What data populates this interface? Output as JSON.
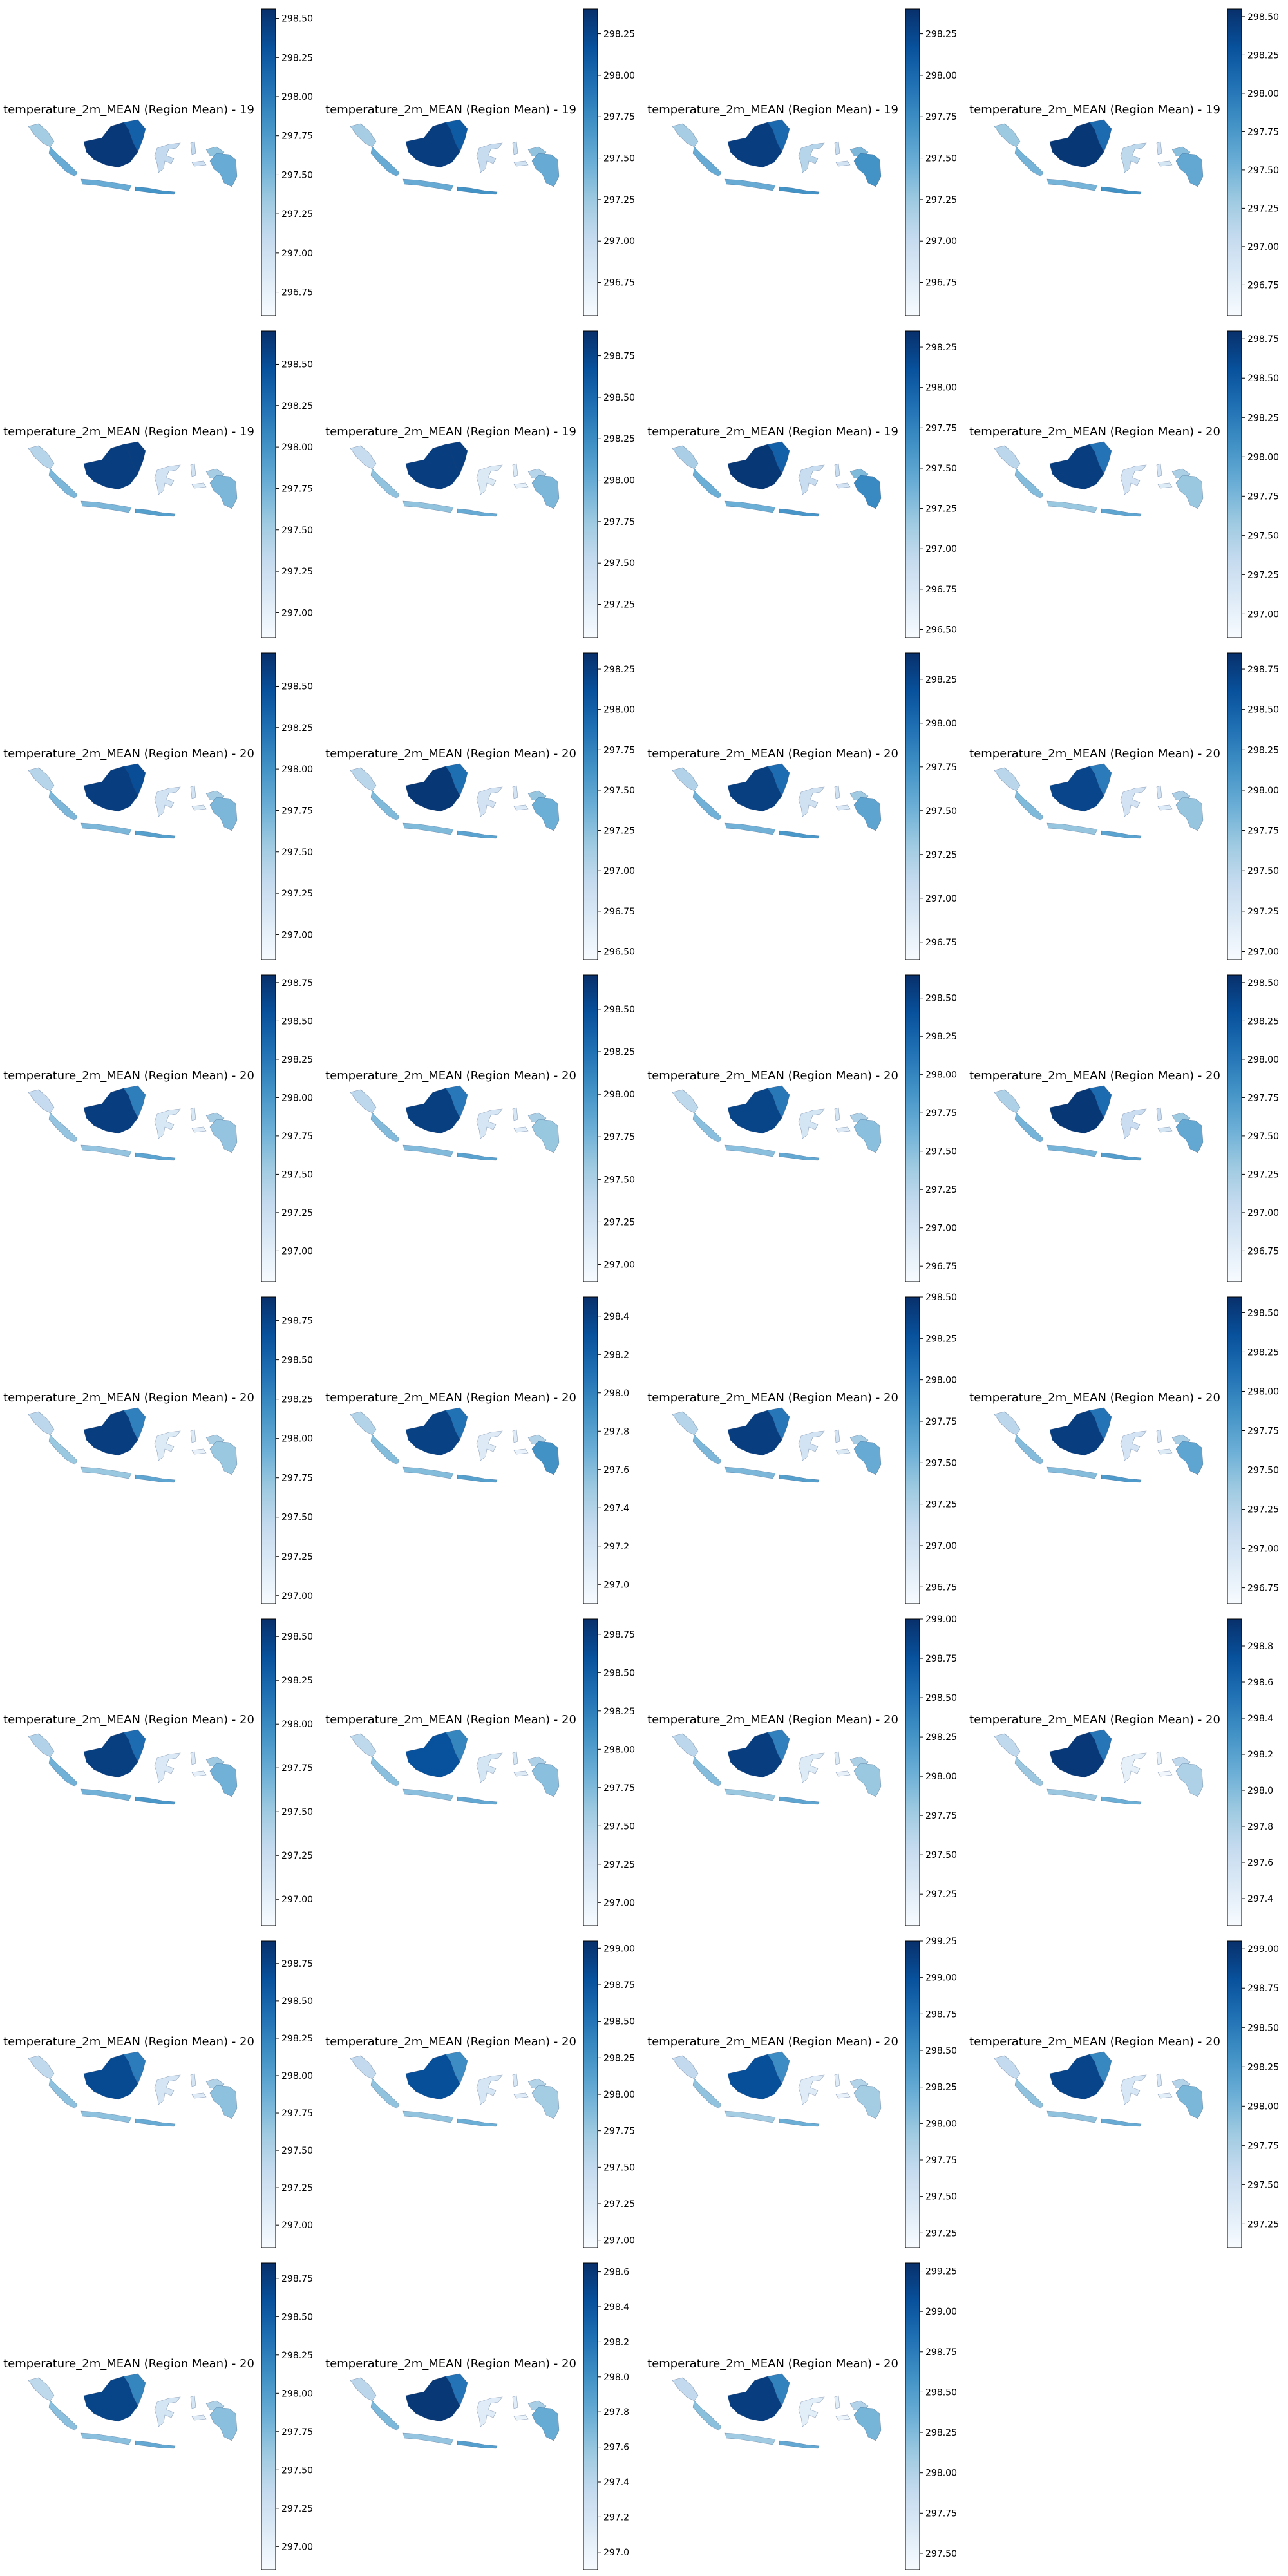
{
  "colormap": {
    "name": "Blues",
    "stops": [
      "#f7fbff",
      "#deebf7",
      "#c6dbef",
      "#9ecae1",
      "#6baed6",
      "#4292c6",
      "#2171b5",
      "#08519c",
      "#08306b"
    ]
  },
  "chart_data": [
    {
      "type": "choropleth",
      "title": "temperature_2m_MEAN (Region Mean) - 19",
      "clim": [
        296.6,
        298.56
      ],
      "ticks": [
        "296.75",
        "297.00",
        "297.25",
        "297.50",
        "297.75",
        "298.00",
        "298.25",
        "298.50"
      ],
      "region_values": [
        297.3,
        298.5,
        297.6,
        298.2,
        297.6,
        297.8,
        297.1,
        297.1,
        297.0,
        297.4,
        297.6
      ]
    },
    {
      "type": "choropleth",
      "title": "temperature_2m_MEAN (Region Mean) - 19",
      "clim": [
        296.55,
        298.4
      ],
      "ticks": [
        "296.75",
        "297.00",
        "297.25",
        "297.50",
        "297.75",
        "298.00",
        "298.25"
      ],
      "region_values": [
        297.2,
        298.3,
        297.5,
        298.1,
        297.5,
        297.7,
        297.0,
        297.0,
        296.9,
        297.3,
        297.5
      ]
    },
    {
      "type": "choropleth",
      "title": "temperature_2m_MEAN (Region Mean) - 19",
      "clim": [
        296.55,
        298.4
      ],
      "ticks": [
        "296.75",
        "297.00",
        "297.25",
        "297.50",
        "297.75",
        "298.00",
        "298.25"
      ],
      "region_values": [
        297.2,
        298.3,
        297.5,
        298.0,
        297.5,
        297.7,
        297.1,
        297.0,
        296.9,
        297.4,
        297.7
      ]
    },
    {
      "type": "choropleth",
      "title": "temperature_2m_MEAN (Region Mean) - 19",
      "clim": [
        296.55,
        298.55
      ],
      "ticks": [
        "296.75",
        "297.00",
        "297.25",
        "297.50",
        "297.75",
        "298.00",
        "298.25",
        "298.50"
      ],
      "region_values": [
        297.3,
        298.5,
        297.5,
        298.1,
        297.5,
        297.8,
        297.1,
        297.0,
        296.9,
        297.4,
        297.6
      ]
    },
    {
      "type": "choropleth",
      "title": "temperature_2m_MEAN (Region Mean) - 19",
      "clim": [
        296.85,
        298.7
      ],
      "ticks": [
        "297.00",
        "297.25",
        "297.50",
        "297.75",
        "298.00",
        "298.25",
        "298.50"
      ],
      "region_values": [
        297.4,
        298.6,
        297.7,
        298.6,
        297.7,
        297.9,
        297.2,
        297.2,
        297.1,
        297.5,
        297.7
      ]
    },
    {
      "type": "choropleth",
      "title": "temperature_2m_MEAN (Region Mean) - 19",
      "clim": [
        297.05,
        298.9
      ],
      "ticks": [
        "297.25",
        "297.50",
        "297.75",
        "298.00",
        "298.25",
        "298.50",
        "298.75"
      ],
      "region_values": [
        297.5,
        298.8,
        297.8,
        298.8,
        297.8,
        298.0,
        297.3,
        297.3,
        297.2,
        297.6,
        297.9
      ]
    },
    {
      "type": "choropleth",
      "title": "temperature_2m_MEAN (Region Mean) - 19",
      "clim": [
        296.45,
        298.35
      ],
      "ticks": [
        "296.50",
        "296.75",
        "297.00",
        "297.25",
        "297.50",
        "297.75",
        "298.00",
        "298.25"
      ],
      "region_values": [
        297.1,
        298.3,
        297.4,
        298.0,
        297.4,
        297.6,
        296.9,
        296.9,
        296.8,
        297.3,
        297.7
      ]
    },
    {
      "type": "choropleth",
      "title": "temperature_2m_MEAN (Region Mean) - 20",
      "clim": [
        296.85,
        298.8
      ],
      "ticks": [
        "297.00",
        "297.25",
        "297.50",
        "297.75",
        "298.00",
        "298.25",
        "298.50",
        "298.75"
      ],
      "region_values": [
        297.4,
        298.7,
        297.7,
        298.3,
        297.6,
        297.9,
        297.2,
        297.2,
        297.1,
        297.5,
        297.6
      ]
    },
    {
      "type": "choropleth",
      "title": "temperature_2m_MEAN (Region Mean) - 20",
      "clim": [
        296.85,
        298.7
      ],
      "ticks": [
        "297.00",
        "297.25",
        "297.50",
        "297.75",
        "298.00",
        "298.25",
        "298.50"
      ],
      "region_values": [
        297.4,
        298.6,
        297.7,
        298.5,
        297.7,
        297.9,
        297.2,
        297.2,
        297.1,
        297.5,
        297.7
      ]
    },
    {
      "type": "choropleth",
      "title": "temperature_2m_MEAN (Region Mean) - 20",
      "clim": [
        296.45,
        298.35
      ],
      "ticks": [
        "296.50",
        "296.75",
        "297.00",
        "297.25",
        "297.50",
        "297.75",
        "298.00",
        "298.25"
      ],
      "region_values": [
        297.0,
        298.3,
        297.3,
        297.9,
        297.3,
        297.5,
        296.8,
        296.8,
        296.7,
        297.2,
        297.4
      ]
    },
    {
      "type": "choropleth",
      "title": "temperature_2m_MEAN (Region Mean) - 20",
      "clim": [
        296.65,
        298.4
      ],
      "ticks": [
        "296.75",
        "297.00",
        "297.25",
        "297.50",
        "297.75",
        "298.00",
        "298.25"
      ],
      "region_values": [
        297.2,
        298.3,
        297.5,
        298.0,
        297.5,
        297.7,
        297.0,
        297.0,
        296.9,
        297.3,
        297.6
      ]
    },
    {
      "type": "choropleth",
      "title": "temperature_2m_MEAN (Region Mean) - 20",
      "clim": [
        296.95,
        298.85
      ],
      "ticks": [
        "297.00",
        "297.25",
        "297.50",
        "297.75",
        "298.00",
        "298.25",
        "298.50",
        "298.75"
      ],
      "region_values": [
        297.5,
        298.7,
        297.8,
        298.3,
        297.7,
        298.0,
        297.3,
        297.3,
        297.2,
        297.6,
        297.7
      ]
    },
    {
      "type": "choropleth",
      "title": "temperature_2m_MEAN (Region Mean) - 20",
      "clim": [
        296.8,
        298.8
      ],
      "ticks": [
        "297.00",
        "297.25",
        "297.50",
        "297.75",
        "298.00",
        "298.25",
        "298.50",
        "298.75"
      ],
      "region_values": [
        297.3,
        298.7,
        297.6,
        298.2,
        297.6,
        297.9,
        297.1,
        297.1,
        297.0,
        297.5,
        297.6
      ]
    },
    {
      "type": "choropleth",
      "title": "temperature_2m_MEAN (Region Mean) - 20",
      "clim": [
        296.9,
        298.7
      ],
      "ticks": [
        "297.00",
        "297.25",
        "297.50",
        "297.75",
        "298.00",
        "298.25",
        "298.50"
      ],
      "region_values": [
        297.4,
        298.6,
        297.7,
        298.2,
        297.7,
        297.9,
        297.2,
        297.2,
        297.1,
        297.5,
        297.6
      ]
    },
    {
      "type": "choropleth",
      "title": "temperature_2m_MEAN (Region Mean) - 20",
      "clim": [
        296.65,
        298.65
      ],
      "ticks": [
        "296.75",
        "297.00",
        "297.25",
        "297.50",
        "297.75",
        "298.00",
        "298.25",
        "298.50"
      ],
      "region_values": [
        297.2,
        298.5,
        297.5,
        298.1,
        297.5,
        297.7,
        297.0,
        297.0,
        296.9,
        297.3,
        297.5
      ]
    },
    {
      "type": "choropleth",
      "title": "temperature_2m_MEAN (Region Mean) - 20",
      "clim": [
        296.55,
        298.55
      ],
      "ticks": [
        "296.75",
        "297.00",
        "297.25",
        "297.50",
        "297.75",
        "298.00",
        "298.25",
        "298.50"
      ],
      "region_values": [
        297.2,
        298.5,
        297.5,
        298.1,
        297.5,
        297.7,
        297.0,
        297.0,
        296.9,
        297.3,
        297.6
      ]
    },
    {
      "type": "choropleth",
      "title": "temperature_2m_MEAN (Region Mean) - 20",
      "clim": [
        296.95,
        298.9
      ],
      "ticks": [
        "297.00",
        "297.25",
        "297.50",
        "297.75",
        "298.00",
        "298.25",
        "298.50",
        "298.75"
      ],
      "region_values": [
        297.5,
        298.8,
        297.7,
        298.3,
        297.7,
        298.0,
        297.2,
        297.2,
        297.1,
        297.6,
        297.7
      ]
    },
    {
      "type": "choropleth",
      "title": "temperature_2m_MEAN (Region Mean) - 20",
      "clim": [
        296.9,
        298.5
      ],
      "ticks": [
        "297.0",
        "297.2",
        "297.4",
        "297.6",
        "297.8",
        "298.0",
        "298.2",
        "298.4"
      ],
      "region_values": [
        297.4,
        298.4,
        297.6,
        298.1,
        297.6,
        297.8,
        297.1,
        297.1,
        297.0,
        297.4,
        297.9
      ]
    },
    {
      "type": "choropleth",
      "title": "temperature_2m_MEAN (Region Mean) - 20",
      "clim": [
        296.65,
        298.5
      ],
      "ticks": [
        "296.75",
        "297.00",
        "297.25",
        "297.50",
        "297.75",
        "298.00",
        "298.25",
        "298.50"
      ],
      "region_values": [
        297.2,
        298.4,
        297.5,
        298.0,
        297.5,
        297.7,
        297.0,
        297.0,
        296.9,
        297.3,
        297.6
      ]
    },
    {
      "type": "choropleth",
      "title": "temperature_2m_MEAN (Region Mean) - 20",
      "clim": [
        296.65,
        298.6
      ],
      "ticks": [
        "296.75",
        "297.00",
        "297.25",
        "297.50",
        "297.75",
        "298.00",
        "298.25",
        "298.50"
      ],
      "region_values": [
        297.2,
        298.5,
        297.5,
        298.1,
        297.5,
        297.8,
        297.0,
        297.0,
        296.9,
        297.3,
        297.7
      ]
    },
    {
      "type": "choropleth",
      "title": "temperature_2m_MEAN (Region Mean) - 20",
      "clim": [
        296.85,
        298.6
      ],
      "ticks": [
        "297.00",
        "297.25",
        "297.50",
        "297.75",
        "298.00",
        "298.25",
        "298.50"
      ],
      "region_values": [
        297.4,
        298.5,
        297.7,
        298.2,
        297.7,
        297.9,
        297.1,
        297.1,
        297.0,
        297.5,
        297.7
      ]
    },
    {
      "type": "choropleth",
      "title": "temperature_2m_MEAN (Region Mean) - 20",
      "clim": [
        296.85,
        298.85
      ],
      "ticks": [
        "297.00",
        "297.25",
        "297.50",
        "297.75",
        "298.00",
        "298.25",
        "298.50",
        "298.75"
      ],
      "region_values": [
        297.4,
        298.6,
        297.7,
        298.2,
        297.7,
        297.9,
        297.2,
        297.2,
        297.1,
        297.5,
        297.7
      ]
    },
    {
      "type": "choropleth",
      "title": "temperature_2m_MEAN (Region Mean) - 20",
      "clim": [
        297.05,
        299.0
      ],
      "ticks": [
        "297.25",
        "297.50",
        "297.75",
        "298.00",
        "298.25",
        "298.50",
        "298.75",
        "299.00"
      ],
      "region_values": [
        297.6,
        298.9,
        297.9,
        298.4,
        297.8,
        298.1,
        297.3,
        297.3,
        297.2,
        297.7,
        297.8
      ]
    },
    {
      "type": "choropleth",
      "title": "temperature_2m_MEAN (Region Mean) - 20",
      "clim": [
        297.25,
        298.95
      ],
      "ticks": [
        "297.4",
        "297.6",
        "297.8",
        "298.0",
        "298.2",
        "298.4",
        "298.6",
        "298.8"
      ],
      "region_values": [
        297.7,
        298.9,
        297.9,
        298.5,
        297.9,
        298.1,
        297.4,
        297.4,
        297.3,
        297.7,
        297.8
      ]
    },
    {
      "type": "choropleth",
      "title": "temperature_2m_MEAN (Region Mean) - 20",
      "clim": [
        296.85,
        298.9
      ],
      "ticks": [
        "297.00",
        "297.25",
        "297.50",
        "297.75",
        "298.00",
        "298.25",
        "298.50",
        "298.75"
      ],
      "region_values": [
        297.4,
        298.7,
        297.7,
        298.3,
        297.7,
        297.9,
        297.2,
        297.2,
        297.1,
        297.5,
        297.7
      ]
    },
    {
      "type": "choropleth",
      "title": "temperature_2m_MEAN (Region Mean) - 20",
      "clim": [
        296.95,
        299.05
      ],
      "ticks": [
        "297.00",
        "297.25",
        "297.50",
        "297.75",
        "298.00",
        "298.25",
        "298.50",
        "298.75",
        "299.00"
      ],
      "region_values": [
        297.5,
        298.8,
        297.8,
        298.3,
        297.8,
        298.0,
        297.3,
        297.3,
        297.2,
        297.6,
        297.7
      ]
    },
    {
      "type": "choropleth",
      "title": "temperature_2m_MEAN (Region Mean) - 20",
      "clim": [
        297.15,
        299.25
      ],
      "ticks": [
        "297.25",
        "297.50",
        "297.75",
        "298.00",
        "298.25",
        "298.50",
        "298.75",
        "299.00",
        "299.25"
      ],
      "region_values": [
        297.7,
        299.0,
        298.0,
        298.5,
        297.9,
        298.2,
        297.4,
        297.4,
        297.3,
        297.8,
        297.9
      ]
    },
    {
      "type": "choropleth",
      "title": "temperature_2m_MEAN (Region Mean) - 20",
      "clim": [
        297.1,
        299.05
      ],
      "ticks": [
        "297.25",
        "297.50",
        "297.75",
        "298.00",
        "298.25",
        "298.50",
        "298.75",
        "299.00"
      ],
      "region_values": [
        297.6,
        298.9,
        297.9,
        298.4,
        297.9,
        298.1,
        297.4,
        297.4,
        297.3,
        297.7,
        298.0
      ]
    },
    {
      "type": "choropleth",
      "title": "temperature_2m_MEAN (Region Mean) - 20",
      "clim": [
        296.85,
        298.85
      ],
      "ticks": [
        "297.00",
        "297.25",
        "297.50",
        "297.75",
        "298.00",
        "298.25",
        "298.50",
        "298.75"
      ],
      "region_values": [
        297.4,
        298.7,
        297.7,
        298.2,
        297.7,
        297.9,
        297.2,
        297.2,
        297.1,
        297.5,
        297.7
      ]
    },
    {
      "type": "choropleth",
      "title": "temperature_2m_MEAN (Region Mean) - 20",
      "clim": [
        296.9,
        298.65
      ],
      "ticks": [
        "297.0",
        "297.2",
        "297.4",
        "297.6",
        "297.8",
        "298.0",
        "298.2",
        "298.4",
        "298.6"
      ],
      "region_values": [
        297.4,
        298.6,
        297.7,
        298.2,
        297.6,
        297.9,
        297.1,
        297.1,
        297.0,
        297.5,
        297.8
      ]
    },
    {
      "type": "choropleth",
      "title": "temperature_2m_MEAN (Region Mean) - 20",
      "clim": [
        297.4,
        299.3
      ],
      "ticks": [
        "297.50",
        "297.75",
        "298.00",
        "298.25",
        "298.50",
        "298.75",
        "299.00",
        "299.25"
      ],
      "region_values": [
        297.9,
        299.2,
        298.2,
        298.7,
        298.1,
        298.4,
        297.6,
        297.6,
        297.5,
        298.0,
        298.3
      ]
    }
  ]
}
